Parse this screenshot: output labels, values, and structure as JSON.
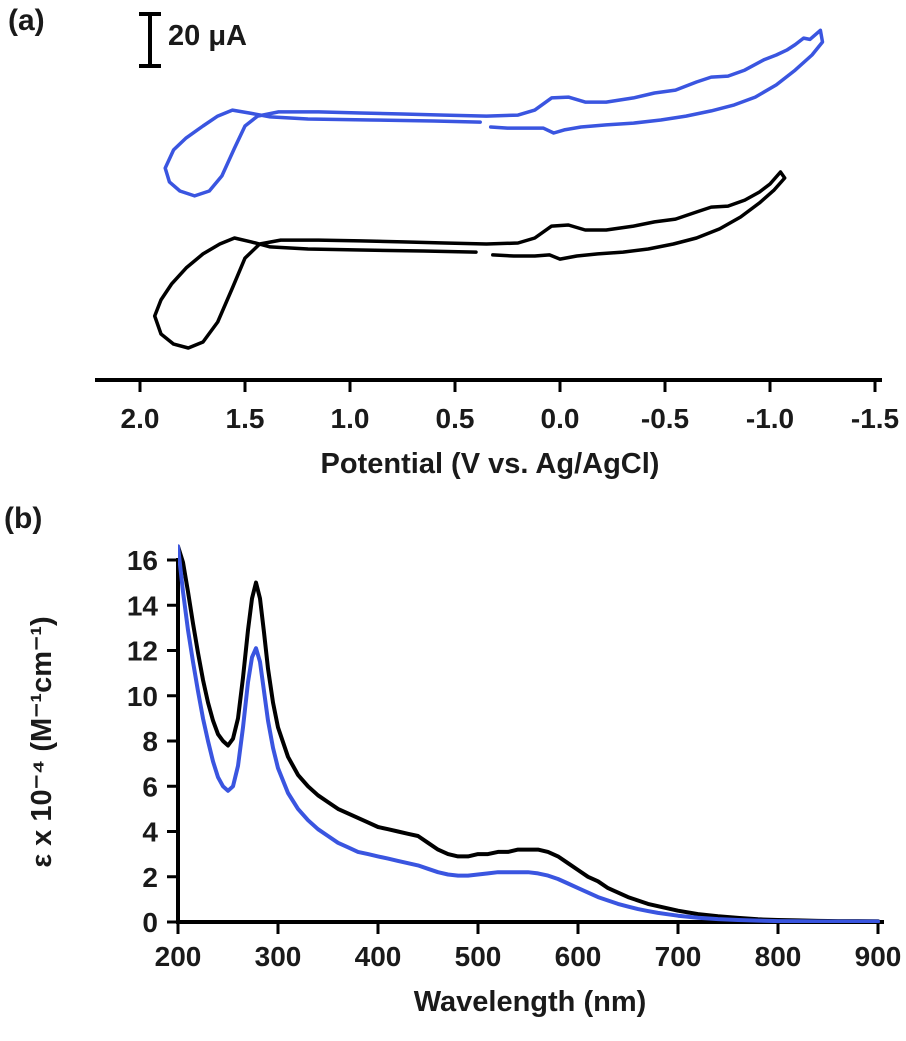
{
  "figure": {
    "background": "#ffffff",
    "accent_blue": "#3a55e0",
    "line_black": "#000000"
  },
  "chart_data": [
    {
      "panel_label": "(a)",
      "type": "line",
      "subtype": "cyclic-voltammetry",
      "xlabel": "Potential (V vs. Ag/AgCl)",
      "x_axis_reversed": true,
      "xlim": [
        2.2,
        -1.55
      ],
      "x_tick_values": [
        2.0,
        1.5,
        1.0,
        0.5,
        0.0,
        -0.5,
        -1.0,
        -1.5
      ],
      "x_tick_labels": [
        "2.0",
        "1.5",
        "1.0",
        "0.5",
        "0.0",
        "-0.5",
        "-1.0",
        "-1.5"
      ],
      "scale_bar": {
        "label": "20 μA",
        "current_uA": 20
      },
      "series": [
        {
          "name": "blue-voltammogram",
          "color": "#3a55e0",
          "points": [
            [
              0.38,
              99.2
            ],
            [
              0.6,
              99.6
            ],
            [
              0.9,
              100
            ],
            [
              1.2,
              100.4
            ],
            [
              1.38,
              101.2
            ],
            [
              1.48,
              102.7
            ],
            [
              1.56,
              103.8
            ],
            [
              1.63,
              101.5
            ],
            [
              1.7,
              97.7
            ],
            [
              1.78,
              93.1
            ],
            [
              1.84,
              88.5
            ],
            [
              1.88,
              81.5
            ],
            [
              1.86,
              76.2
            ],
            [
              1.81,
              72.7
            ],
            [
              1.74,
              70.8
            ],
            [
              1.67,
              72.7
            ],
            [
              1.61,
              78.5
            ],
            [
              1.55,
              89.2
            ],
            [
              1.5,
              97.7
            ],
            [
              1.44,
              101.5
            ],
            [
              1.34,
              103.1
            ],
            [
              1.15,
              103.1
            ],
            [
              0.95,
              102.7
            ],
            [
              0.75,
              102.3
            ],
            [
              0.55,
              101.9
            ],
            [
              0.35,
              101.5
            ],
            [
              0.2,
              101.9
            ],
            [
              0.12,
              103.8
            ],
            [
              0.04,
              108.5
            ],
            [
              -0.04,
              108.8
            ],
            [
              -0.12,
              106.9
            ],
            [
              -0.22,
              106.9
            ],
            [
              -0.35,
              108.5
            ],
            [
              -0.45,
              110.4
            ],
            [
              -0.55,
              111.5
            ],
            [
              -0.65,
              114.6
            ],
            [
              -0.72,
              116.5
            ],
            [
              -0.8,
              116.9
            ],
            [
              -0.88,
              119.2
            ],
            [
              -0.97,
              123.1
            ],
            [
              -1.03,
              125
            ],
            [
              -1.08,
              126.9
            ],
            [
              -1.12,
              129
            ],
            [
              -1.16,
              131.5
            ],
            [
              -1.19,
              131
            ],
            [
              -1.24,
              134.5
            ],
            [
              -1.25,
              130
            ],
            [
              -1.2,
              125
            ],
            [
              -1.12,
              119.2
            ],
            [
              -1.03,
              113.5
            ],
            [
              -0.93,
              108.8
            ],
            [
              -0.83,
              105.8
            ],
            [
              -0.72,
              103.5
            ],
            [
              -0.6,
              101.5
            ],
            [
              -0.48,
              100
            ],
            [
              -0.35,
              98.8
            ],
            [
              -0.22,
              98.1
            ],
            [
              -0.1,
              97.3
            ],
            [
              -0.02,
              96.2
            ],
            [
              0.03,
              95
            ],
            [
              0.08,
              96.9
            ],
            [
              0.15,
              96.9
            ],
            [
              0.25,
              96.9
            ],
            [
              0.33,
              97.3
            ]
          ]
        },
        {
          "name": "black-voltammogram",
          "color": "#000000",
          "points": [
            [
              0.4,
              49.2
            ],
            [
              0.65,
              49.6
            ],
            [
              0.95,
              50
            ],
            [
              1.2,
              50.4
            ],
            [
              1.38,
              51.2
            ],
            [
              1.47,
              53.1
            ],
            [
              1.55,
              54.6
            ],
            [
              1.62,
              52.3
            ],
            [
              1.7,
              48.5
            ],
            [
              1.78,
              43.1
            ],
            [
              1.85,
              36.9
            ],
            [
              1.9,
              30.8
            ],
            [
              1.93,
              24.6
            ],
            [
              1.9,
              17.7
            ],
            [
              1.84,
              13.8
            ],
            [
              1.77,
              12.3
            ],
            [
              1.7,
              14.6
            ],
            [
              1.63,
              22.3
            ],
            [
              1.56,
              35.4
            ],
            [
              1.5,
              46.9
            ],
            [
              1.43,
              52.3
            ],
            [
              1.33,
              53.8
            ],
            [
              1.15,
              53.8
            ],
            [
              0.95,
              53.5
            ],
            [
              0.75,
              53.1
            ],
            [
              0.55,
              52.7
            ],
            [
              0.35,
              52.3
            ],
            [
              0.2,
              52.7
            ],
            [
              0.12,
              54.6
            ],
            [
              0.04,
              59.2
            ],
            [
              -0.04,
              59.6
            ],
            [
              -0.12,
              57.7
            ],
            [
              -0.22,
              57.7
            ],
            [
              -0.35,
              59.2
            ],
            [
              -0.45,
              60.8
            ],
            [
              -0.55,
              61.9
            ],
            [
              -0.65,
              64.6
            ],
            [
              -0.72,
              66.5
            ],
            [
              -0.8,
              66.9
            ],
            [
              -0.88,
              69.2
            ],
            [
              -0.95,
              72.3
            ],
            [
              -1.0,
              75.4
            ],
            [
              -1.05,
              80
            ],
            [
              -1.07,
              77.7
            ],
            [
              -1.02,
              73.1
            ],
            [
              -0.95,
              68.1
            ],
            [
              -0.86,
              62.7
            ],
            [
              -0.76,
              58.1
            ],
            [
              -0.65,
              54.6
            ],
            [
              -0.54,
              52.3
            ],
            [
              -0.42,
              50.4
            ],
            [
              -0.3,
              49.2
            ],
            [
              -0.18,
              48.5
            ],
            [
              -0.08,
              47.7
            ],
            [
              0.0,
              46.5
            ],
            [
              0.05,
              48.1
            ],
            [
              0.12,
              47.7
            ],
            [
              0.22,
              47.7
            ],
            [
              0.32,
              48.1
            ]
          ]
        }
      ],
      "y_units": "μA (vertical scale given by 20 μA bar; traces vertically offset, no numeric y axis shown)"
    },
    {
      "panel_label": "(b)",
      "type": "line",
      "subtype": "uv-vis-absorption-spectra",
      "xlabel": "Wavelength (nm)",
      "ylabel": "ε x 10⁻⁴ (M⁻¹cm⁻¹)",
      "xlim": [
        200,
        900
      ],
      "ylim": [
        0,
        16
      ],
      "x_tick_values": [
        200,
        300,
        400,
        500,
        600,
        700,
        800,
        900
      ],
      "x_tick_labels": [
        "200",
        "300",
        "400",
        "500",
        "600",
        "700",
        "800",
        "900"
      ],
      "y_tick_values": [
        0,
        2,
        4,
        6,
        8,
        10,
        12,
        14,
        16
      ],
      "y_tick_labels": [
        "0",
        "2",
        "4",
        "6",
        "8",
        "10",
        "12",
        "14",
        "16"
      ],
      "wavelengths_nm": [
        200,
        205,
        210,
        215,
        220,
        225,
        230,
        235,
        240,
        245,
        250,
        255,
        260,
        265,
        270,
        274,
        278,
        282,
        286,
        290,
        295,
        300,
        310,
        320,
        330,
        340,
        350,
        360,
        370,
        380,
        390,
        400,
        410,
        420,
        430,
        440,
        450,
        460,
        470,
        480,
        490,
        500,
        510,
        520,
        530,
        540,
        550,
        560,
        570,
        580,
        590,
        600,
        610,
        620,
        630,
        640,
        650,
        660,
        670,
        680,
        690,
        700,
        720,
        740,
        760,
        780,
        800,
        820,
        840,
        860,
        880,
        900
      ],
      "series": [
        {
          "name": "black-spectrum",
          "color": "#000000",
          "epsilon_1e4": [
            16.6,
            15.9,
            14.6,
            13.2,
            11.9,
            10.7,
            9.7,
            8.9,
            8.3,
            8.0,
            7.8,
            8.1,
            9.0,
            10.8,
            12.9,
            14.3,
            15.0,
            14.3,
            12.8,
            11.2,
            9.7,
            8.6,
            7.3,
            6.5,
            6.0,
            5.6,
            5.3,
            5.0,
            4.8,
            4.6,
            4.4,
            4.2,
            4.1,
            4.0,
            3.9,
            3.8,
            3.5,
            3.2,
            3.0,
            2.9,
            2.9,
            3.0,
            3.0,
            3.1,
            3.1,
            3.2,
            3.2,
            3.2,
            3.1,
            2.9,
            2.6,
            2.3,
            2.0,
            1.8,
            1.5,
            1.3,
            1.1,
            0.95,
            0.8,
            0.7,
            0.6,
            0.5,
            0.35,
            0.25,
            0.18,
            0.12,
            0.09,
            0.07,
            0.05,
            0.04,
            0.04,
            0.03
          ]
        },
        {
          "name": "blue-spectrum",
          "color": "#3a55e0",
          "epsilon_1e4": [
            16.6,
            14.6,
            12.9,
            11.5,
            10.2,
            9.0,
            8.0,
            7.1,
            6.4,
            6.0,
            5.8,
            6.0,
            6.9,
            8.6,
            10.6,
            11.7,
            12.1,
            11.5,
            10.2,
            8.9,
            7.7,
            6.8,
            5.7,
            5.0,
            4.5,
            4.1,
            3.8,
            3.5,
            3.3,
            3.1,
            3.0,
            2.9,
            2.8,
            2.7,
            2.6,
            2.5,
            2.35,
            2.2,
            2.1,
            2.05,
            2.05,
            2.1,
            2.15,
            2.2,
            2.2,
            2.2,
            2.2,
            2.15,
            2.05,
            1.9,
            1.7,
            1.5,
            1.3,
            1.1,
            0.95,
            0.8,
            0.68,
            0.57,
            0.48,
            0.4,
            0.34,
            0.28,
            0.19,
            0.13,
            0.09,
            0.06,
            0.04,
            0.03,
            0.02,
            0.02,
            0.02,
            0.02
          ]
        }
      ],
      "grid": false,
      "legend": "none"
    }
  ]
}
